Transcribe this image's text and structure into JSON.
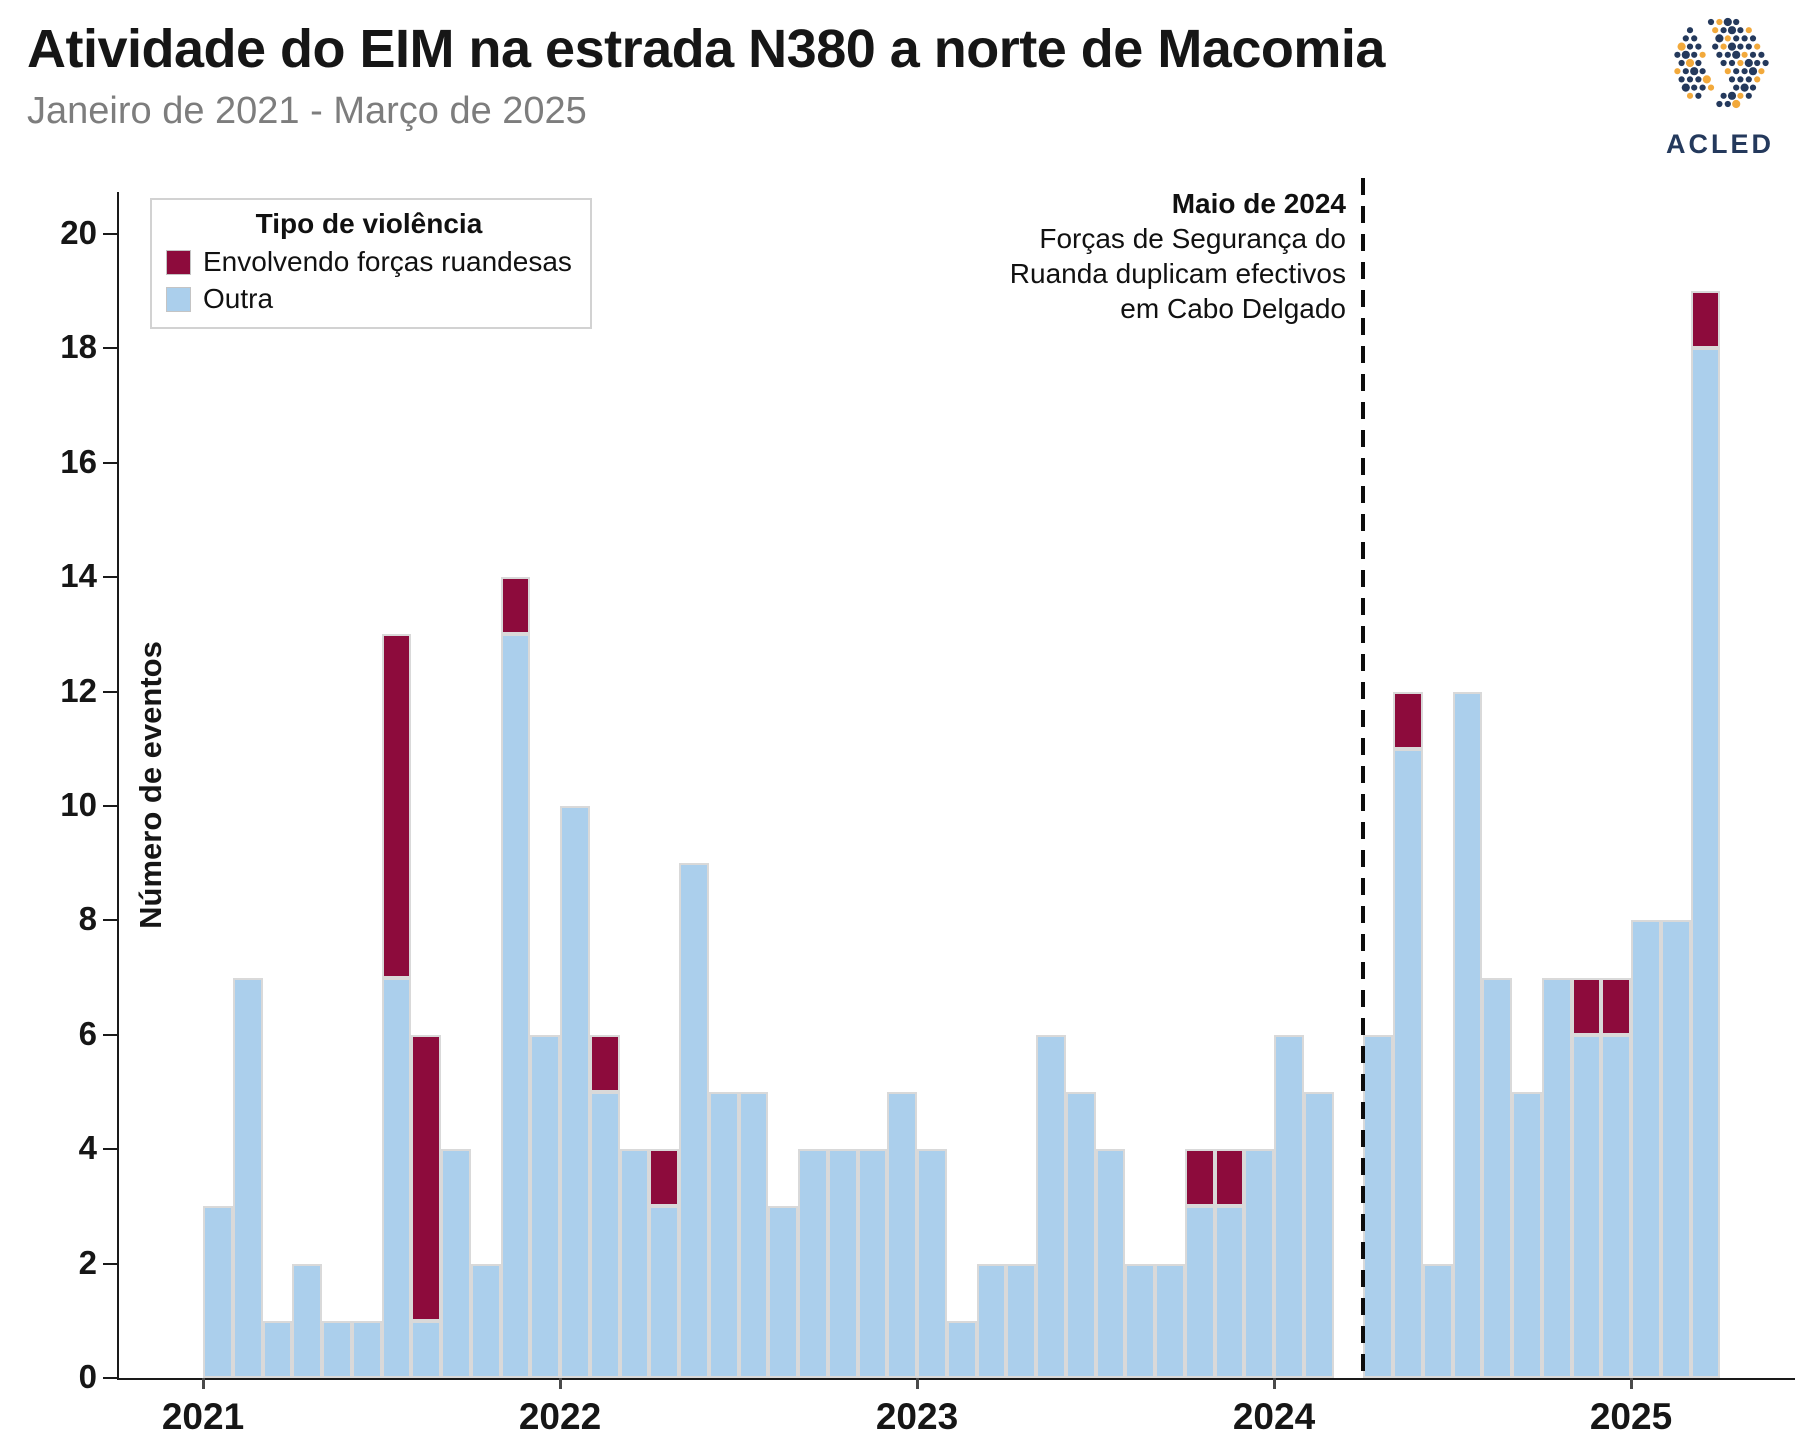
{
  "header": {
    "title": "Atividade do EIM na estrada N380 a norte de Macomia",
    "subtitle": "Janeiro de 2021 - Março de 2025"
  },
  "logo": {
    "text": "ACLED",
    "navy": "#24395c",
    "orange": "#f2a93b"
  },
  "legend": {
    "title": "Tipo de violência",
    "items": [
      {
        "label": "Envolvendo forças ruandesas",
        "color": "#8d0b3c"
      },
      {
        "label": "Outra",
        "color": "#abcfec"
      }
    ]
  },
  "annotation": {
    "title": "Maio de 2024",
    "lines": [
      "Forças de Segurança do",
      "Ruanda duplicam efectivos",
      "em Cabo Delgado"
    ]
  },
  "chart_data": {
    "type": "bar",
    "stacked": true,
    "title": "Atividade do EIM na estrada N380 a norte de Macomia",
    "subtitle": "Janeiro de 2021 - Março de 2025",
    "xlabel": "",
    "ylabel": "Número de eventos",
    "ylim": [
      0,
      20
    ],
    "yticks": [
      0,
      2,
      4,
      6,
      8,
      10,
      12,
      14,
      16,
      18,
      20
    ],
    "grid": false,
    "legend_position": "top-left-inside",
    "year_labels": [
      "2021",
      "2022",
      "2023",
      "2024",
      "2025"
    ],
    "year_tick_month_index": [
      0,
      12,
      24,
      36,
      48
    ],
    "dashed_line_month_index": 39,
    "series_names": [
      "Outra",
      "Envolvendo forças ruandesas"
    ],
    "months": [
      {
        "m": "jan 2021",
        "outra": 3,
        "ruandesas": 0
      },
      {
        "m": "fev 2021",
        "outra": 7,
        "ruandesas": 0
      },
      {
        "m": "mar 2021",
        "outra": 1,
        "ruandesas": 0
      },
      {
        "m": "abr 2021",
        "outra": 2,
        "ruandesas": 0
      },
      {
        "m": "mai 2021",
        "outra": 1,
        "ruandesas": 0
      },
      {
        "m": "jun 2021",
        "outra": 1,
        "ruandesas": 0
      },
      {
        "m": "jul 2021",
        "outra": 7,
        "ruandesas": 6
      },
      {
        "m": "ago 2021",
        "outra": 1,
        "ruandesas": 5
      },
      {
        "m": "set 2021",
        "outra": 4,
        "ruandesas": 0
      },
      {
        "m": "out 2021",
        "outra": 2,
        "ruandesas": 0
      },
      {
        "m": "nov 2021",
        "outra": 13,
        "ruandesas": 1
      },
      {
        "m": "dez 2021",
        "outra": 6,
        "ruandesas": 0
      },
      {
        "m": "jan 2022",
        "outra": 10,
        "ruandesas": 0
      },
      {
        "m": "fev 2022",
        "outra": 5,
        "ruandesas": 1
      },
      {
        "m": "mar 2022",
        "outra": 4,
        "ruandesas": 0
      },
      {
        "m": "abr 2022",
        "outra": 3,
        "ruandesas": 1
      },
      {
        "m": "mai 2022",
        "outra": 9,
        "ruandesas": 0
      },
      {
        "m": "jun 2022",
        "outra": 5,
        "ruandesas": 0
      },
      {
        "m": "jul 2022",
        "outra": 5,
        "ruandesas": 0
      },
      {
        "m": "ago 2022",
        "outra": 3,
        "ruandesas": 0
      },
      {
        "m": "set 2022",
        "outra": 4,
        "ruandesas": 0
      },
      {
        "m": "out 2022",
        "outra": 4,
        "ruandesas": 0
      },
      {
        "m": "nov 2022",
        "outra": 4,
        "ruandesas": 0
      },
      {
        "m": "dez 2022",
        "outra": 5,
        "ruandesas": 0
      },
      {
        "m": "jan 2023",
        "outra": 4,
        "ruandesas": 0
      },
      {
        "m": "fev 2023",
        "outra": 1,
        "ruandesas": 0
      },
      {
        "m": "mar 2023",
        "outra": 2,
        "ruandesas": 0
      },
      {
        "m": "abr 2023",
        "outra": 2,
        "ruandesas": 0
      },
      {
        "m": "mai 2023",
        "outra": 6,
        "ruandesas": 0
      },
      {
        "m": "jun 2023",
        "outra": 5,
        "ruandesas": 0
      },
      {
        "m": "jul 2023",
        "outra": 4,
        "ruandesas": 0
      },
      {
        "m": "ago 2023",
        "outra": 2,
        "ruandesas": 0
      },
      {
        "m": "set 2023",
        "outra": 2,
        "ruandesas": 0
      },
      {
        "m": "out 2023",
        "outra": 3,
        "ruandesas": 1
      },
      {
        "m": "nov 2023",
        "outra": 3,
        "ruandesas": 1
      },
      {
        "m": "dez 2023",
        "outra": 4,
        "ruandesas": 0
      },
      {
        "m": "jan 2024",
        "outra": 6,
        "ruandesas": 0
      },
      {
        "m": "fev 2024",
        "outra": 5,
        "ruandesas": 0
      },
      {
        "m": "mar 2024",
        "outra": 0,
        "ruandesas": 0
      },
      {
        "m": "abr 2024",
        "outra": 6,
        "ruandesas": 0
      },
      {
        "m": "mai 2024",
        "outra": 11,
        "ruandesas": 1
      },
      {
        "m": "jun 2024",
        "outra": 2,
        "ruandesas": 0
      },
      {
        "m": "jul 2024",
        "outra": 12,
        "ruandesas": 0
      },
      {
        "m": "ago 2024",
        "outra": 7,
        "ruandesas": 0
      },
      {
        "m": "set 2024",
        "outra": 5,
        "ruandesas": 0
      },
      {
        "m": "out 2024",
        "outra": 7,
        "ruandesas": 0
      },
      {
        "m": "nov 2024",
        "outra": 6,
        "ruandesas": 1
      },
      {
        "m": "dez 2024",
        "outra": 6,
        "ruandesas": 1
      },
      {
        "m": "jan 2025",
        "outra": 8,
        "ruandesas": 0
      },
      {
        "m": "fev 2025",
        "outra": 8,
        "ruandesas": 0
      },
      {
        "m": "mar 2025",
        "outra": 18,
        "ruandesas": 1
      }
    ],
    "colors": {
      "ruandesas": "#8d0b3c",
      "outra": "#abcfec"
    }
  }
}
